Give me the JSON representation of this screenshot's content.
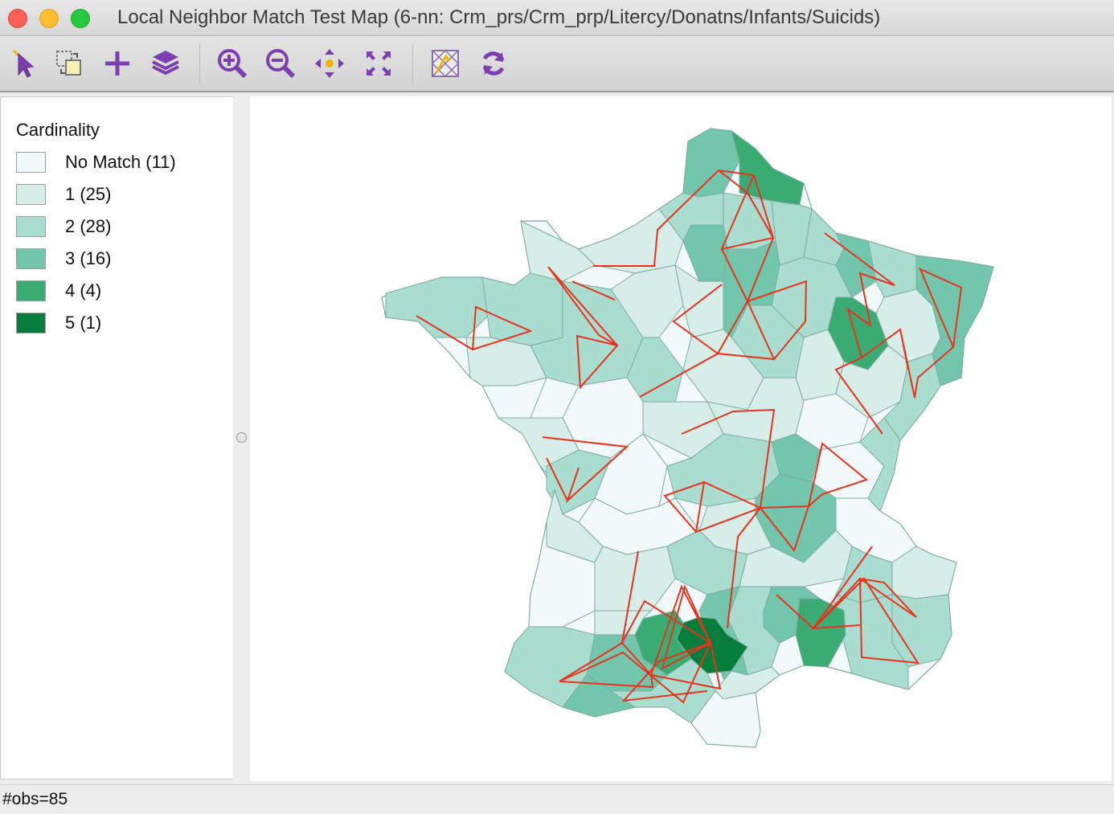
{
  "window": {
    "title": "Local Neighbor Match Test Map (6-nn: Crm_prs/Crm_prp/Litercy/Donatns/Infants/Suicids)"
  },
  "toolbar": {
    "buttons": [
      {
        "name": "select-icon"
      },
      {
        "name": "selection-shape-icon"
      },
      {
        "name": "add-layer-icon"
      },
      {
        "name": "layers-icon"
      },
      {
        "name": "zoom-in-icon"
      },
      {
        "name": "zoom-out-icon"
      },
      {
        "name": "pan-icon"
      },
      {
        "name": "full-extent-icon"
      },
      {
        "name": "map-theme-icon"
      },
      {
        "name": "refresh-icon"
      }
    ]
  },
  "legend": {
    "title": "Cardinality",
    "items": [
      {
        "label": "No Match (11)",
        "color": "#f2f9fb"
      },
      {
        "label": "1 (25)",
        "color": "#d7ede7"
      },
      {
        "label": "2 (28)",
        "color": "#a9ddd0"
      },
      {
        "label": "3 (16)",
        "color": "#72c6ab"
      },
      {
        "label": "4 (4)",
        "color": "#3aab72"
      },
      {
        "label": "5 (1)",
        "color": "#077d3c"
      }
    ]
  },
  "map": {
    "link_color": "#e8321e",
    "outline_color": "#7faaa0"
  },
  "status": {
    "obs": "#obs=85"
  }
}
